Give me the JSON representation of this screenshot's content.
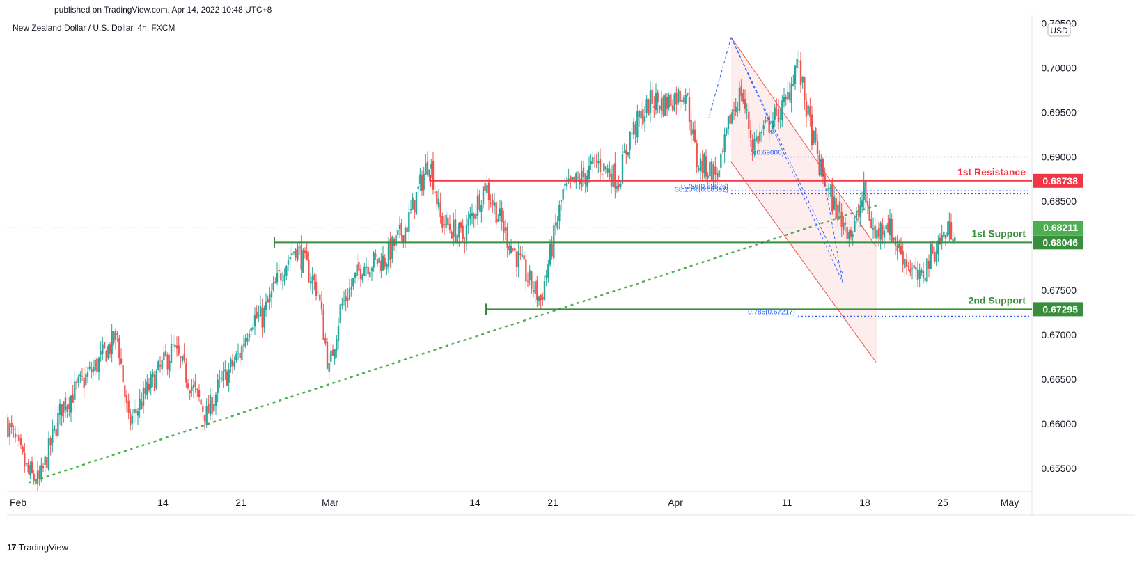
{
  "header": {
    "published": "published on TradingView.com, Apr 14, 2022 10:48 UTC+8",
    "symbol": "New Zealand Dollar / U.S. Dollar, 4h, FXCM"
  },
  "footer": {
    "brand": "TradingView",
    "brand_mark": "17"
  },
  "colors": {
    "up": "#26a69a",
    "down": "#ef5350",
    "resistance": "#f23645",
    "support": "#388e3c",
    "fib": "#2962ff",
    "trend": "#4caf50",
    "channel_fill": "#fde7e7",
    "price_last": "#4caf50"
  },
  "chart_data": {
    "type": "candlestick",
    "title": "New Zealand Dollar / U.S. Dollar, 4h, FXCM",
    "currency": "USD",
    "ylim": [
      0.6525,
      0.7055
    ],
    "xlim": [
      "2022-01-31",
      "2022-05-03"
    ],
    "y_ticks": [
      "0.65500",
      "0.66000",
      "0.66500",
      "0.67000",
      "0.67500",
      "0.68000",
      "0.68500",
      "0.69000",
      "0.69500",
      "0.70000",
      "0.70500"
    ],
    "x_ticks": [
      {
        "date": "2022-02-01",
        "label": "Feb"
      },
      {
        "date": "2022-02-14",
        "label": "14"
      },
      {
        "date": "2022-02-21",
        "label": "21"
      },
      {
        "date": "2022-03-01",
        "label": "Mar"
      },
      {
        "date": "2022-03-14",
        "label": "14"
      },
      {
        "date": "2022-03-21",
        "label": "21"
      },
      {
        "date": "2022-04-01",
        "label": "Apr"
      },
      {
        "date": "2022-04-11",
        "label": "11"
      },
      {
        "date": "2022-04-18",
        "label": "18"
      },
      {
        "date": "2022-04-25",
        "label": "25"
      },
      {
        "date": "2022-05-01",
        "label": "May"
      }
    ],
    "price_path": [
      [
        "2022-01-31",
        0.6605
      ],
      [
        "2022-02-02",
        0.6545
      ],
      [
        "2022-02-03",
        0.6535
      ],
      [
        "2022-02-05",
        0.662
      ],
      [
        "2022-02-08",
        0.6665
      ],
      [
        "2022-02-10",
        0.67
      ],
      [
        "2022-02-11",
        0.66
      ],
      [
        "2022-02-13",
        0.6645
      ],
      [
        "2022-02-15",
        0.6685
      ],
      [
        "2022-02-16",
        0.666
      ],
      [
        "2022-02-18",
        0.661
      ],
      [
        "2022-02-19",
        0.664
      ],
      [
        "2022-02-21",
        0.668
      ],
      [
        "2022-02-22",
        0.672
      ],
      [
        "2022-02-23",
        0.672
      ],
      [
        "2022-02-25",
        0.678
      ],
      [
        "2022-02-26",
        0.68
      ],
      [
        "2022-02-28",
        0.675
      ],
      [
        "2022-03-01",
        0.666
      ],
      [
        "2022-03-02",
        0.673
      ],
      [
        "2022-03-04",
        0.678
      ],
      [
        "2022-03-06",
        0.6785
      ],
      [
        "2022-03-08",
        0.6825
      ],
      [
        "2022-03-10",
        0.69
      ],
      [
        "2022-03-11",
        0.683
      ],
      [
        "2022-03-13",
        0.681
      ],
      [
        "2022-03-15",
        0.687
      ],
      [
        "2022-03-17",
        0.681
      ],
      [
        "2022-03-19",
        0.676
      ],
      [
        "2022-03-20",
        0.674
      ],
      [
        "2022-03-21",
        0.68
      ],
      [
        "2022-03-22",
        0.686
      ],
      [
        "2022-03-24",
        0.688
      ],
      [
        "2022-03-25",
        0.6895
      ],
      [
        "2022-03-27",
        0.6875
      ],
      [
        "2022-03-28",
        0.6925
      ],
      [
        "2022-03-30",
        0.6965
      ],
      [
        "2022-03-31",
        0.696
      ],
      [
        "2022-04-02",
        0.6975
      ],
      [
        "2022-04-03",
        0.6895
      ],
      [
        "2022-04-05",
        0.688
      ],
      [
        "2022-04-06",
        0.6945
      ],
      [
        "2022-04-07",
        0.6975
      ],
      [
        "2022-04-08",
        0.6915
      ],
      [
        "2022-04-10",
        0.6945
      ],
      [
        "2022-04-11",
        0.696
      ],
      [
        "2022-04-12",
        0.701
      ],
      [
        "2022-04-13",
        0.6945
      ],
      [
        "2022-04-14",
        0.689
      ],
      [
        "2022-04-15",
        0.6855
      ],
      [
        "2022-04-16",
        0.683
      ],
      [
        "2022-04-17",
        0.6815
      ],
      [
        "2022-04-18",
        0.686
      ],
      [
        "2022-04-19",
        0.681
      ],
      [
        "2022-04-20",
        0.683
      ],
      [
        "2022-04-21",
        0.68
      ],
      [
        "2022-04-22",
        0.678
      ],
      [
        "2022-04-23",
        0.676
      ],
      [
        "2022-04-24",
        0.679
      ],
      [
        "2022-04-25",
        0.681
      ],
      [
        "2022-04-26",
        0.6821
      ]
    ],
    "horizontal_levels": [
      {
        "name": "1st Resistance",
        "value": "0.68738",
        "color": "#f23645"
      },
      {
        "name": "1st Support",
        "value": "0.68046",
        "color": "#388e3c"
      },
      {
        "name": "2nd Support",
        "value": "0.67295",
        "color": "#388e3c"
      }
    ],
    "last_price": "0.68211",
    "fibonacci_labels": [
      {
        "text": "0(0.69006)",
        "value": 0.69006
      },
      {
        "text": "0.786(0.68626)",
        "value": 0.68626
      },
      {
        "text": "38.20%(0.68592)",
        "value": 0.68592
      },
      {
        "text": "0.786(0.67217)",
        "value": 0.67217
      }
    ],
    "trendline": {
      "style": "dotted",
      "from": [
        "2022-02-02",
        0.6535
      ],
      "to": [
        "2022-04-19",
        0.6846
      ]
    },
    "descending_channel": {
      "upper": [
        [
          "2022-04-06",
          0.7035
        ],
        [
          "2022-04-19",
          0.68
        ]
      ],
      "lower": [
        [
          "2022-04-06",
          0.6895
        ],
        [
          "2022-04-19",
          0.667
        ]
      ]
    },
    "legend": "none",
    "grid": false
  }
}
